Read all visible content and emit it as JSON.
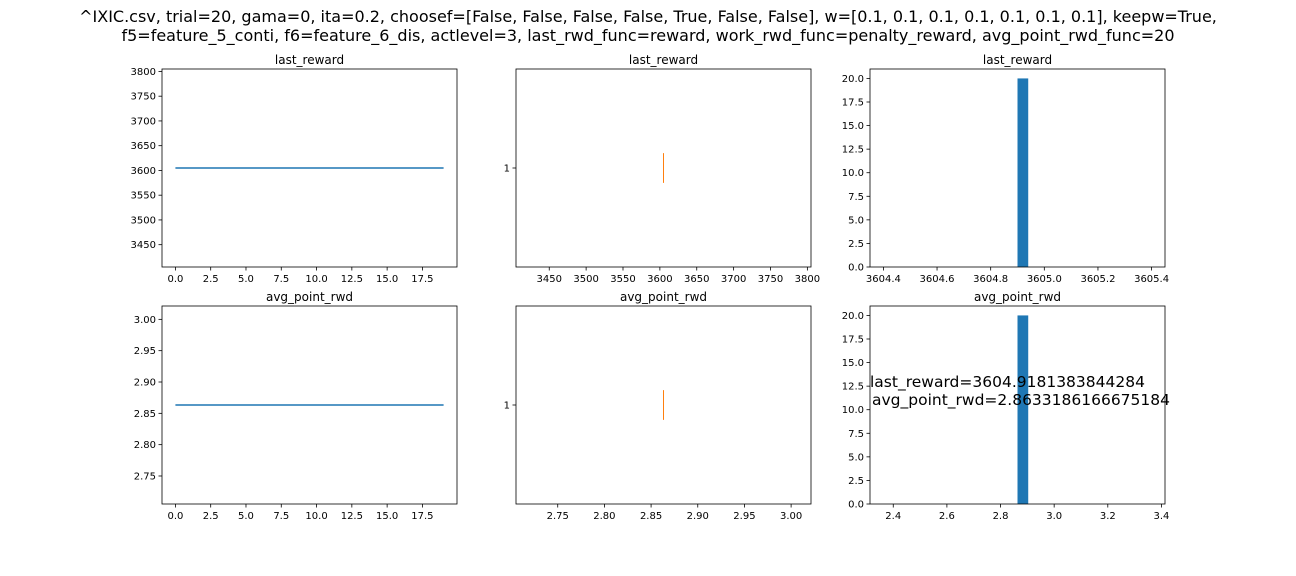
{
  "suptitle": {
    "line1": "^IXIC.csv, trial=20, gama=0, ita=0.2, choosef=[False, False, False, False, True, False, False], w=[0.1, 0.1, 0.1, 0.1, 0.1, 0.1, 0.1], keepw=True,",
    "line2": "f5=feature_5_conti, f6=feature_6_dis, actlevel=3, last_rwd_func=reward, work_rwd_func=penalty_reward, avg_point_rwd_func=20"
  },
  "annotation": {
    "line1": "last_reward=3604.9181383844284",
    "line2": "avg_point_rwd=2.8633186166675184"
  },
  "colors": {
    "line": "#1f77b4",
    "bar": "#1f77b4",
    "event": "#ff7f0e"
  },
  "chart_data": [
    {
      "type": "line",
      "title": "last_reward",
      "x": [
        0,
        1,
        2,
        3,
        4,
        5,
        6,
        7,
        8,
        9,
        10,
        11,
        12,
        13,
        14,
        15,
        16,
        17,
        18,
        19
      ],
      "y": [
        3604.918,
        3604.918,
        3604.918,
        3604.918,
        3604.918,
        3604.918,
        3604.918,
        3604.918,
        3604.918,
        3604.918,
        3604.918,
        3604.918,
        3604.918,
        3604.918,
        3604.918,
        3604.918,
        3604.918,
        3604.918,
        3604.918,
        3604.918
      ],
      "xlim": [
        -0.95,
        19.95
      ],
      "ylim": [
        3404.918,
        3804.918
      ],
      "xticks": [
        0,
        2.5,
        5,
        7.5,
        10,
        12.5,
        15,
        17.5
      ],
      "xtick_labels": [
        "0.0",
        "2.5",
        "5.0",
        "7.5",
        "10.0",
        "12.5",
        "15.0",
        "17.5"
      ],
      "yticks": [
        3450,
        3500,
        3550,
        3600,
        3650,
        3700,
        3750,
        3800
      ],
      "ytick_labels": [
        "3450",
        "3500",
        "3550",
        "3600",
        "3650",
        "3700",
        "3750",
        "3800"
      ]
    },
    {
      "type": "eventplot",
      "title": "last_reward",
      "events": [
        3604.918
      ],
      "lineoffset": 1,
      "linelength": 0.3,
      "xlim": [
        3404.918,
        3804.918
      ],
      "ylim": [
        0,
        2
      ],
      "xticks": [
        3450,
        3500,
        3550,
        3600,
        3650,
        3700,
        3750,
        3800
      ],
      "xtick_labels": [
        "3450",
        "3500",
        "3550",
        "3600",
        "3650",
        "3700",
        "3750",
        "3800"
      ],
      "yticks": [
        1
      ],
      "ytick_labels": [
        "1"
      ]
    },
    {
      "type": "bar",
      "title": "last_reward",
      "bar_x0": 3604.918,
      "bar_x1": 3604.958,
      "value": 20,
      "xlim": [
        3604.368,
        3605.468
      ],
      "ylim": [
        0,
        21
      ],
      "xticks": [
        3604.418,
        3604.618,
        3604.818,
        3605.018,
        3605.218,
        3605.418
      ],
      "xtick_labels": [
        "3604.4",
        "3604.6",
        "3604.8",
        "3605.0",
        "3605.2",
        "3605.4"
      ],
      "yticks": [
        0,
        2.5,
        5,
        7.5,
        10,
        12.5,
        15,
        17.5,
        20
      ],
      "ytick_labels": [
        "0.0",
        "2.5",
        "5.0",
        "7.5",
        "10.0",
        "12.5",
        "15.0",
        "17.5",
        "20.0"
      ]
    },
    {
      "type": "line",
      "title": "avg_point_rwd",
      "x": [
        0,
        1,
        2,
        3,
        4,
        5,
        6,
        7,
        8,
        9,
        10,
        11,
        12,
        13,
        14,
        15,
        16,
        17,
        18,
        19
      ],
      "y": [
        2.8633,
        2.8633,
        2.8633,
        2.8633,
        2.8633,
        2.8633,
        2.8633,
        2.8633,
        2.8633,
        2.8633,
        2.8633,
        2.8633,
        2.8633,
        2.8633,
        2.8633,
        2.8633,
        2.8633,
        2.8633,
        2.8633,
        2.8633
      ],
      "xlim": [
        -0.95,
        19.95
      ],
      "ylim": [
        2.7053,
        3.0213
      ],
      "xticks": [
        0,
        2.5,
        5,
        7.5,
        10,
        12.5,
        15,
        17.5
      ],
      "xtick_labels": [
        "0.0",
        "2.5",
        "5.0",
        "7.5",
        "10.0",
        "12.5",
        "15.0",
        "17.5"
      ],
      "yticks": [
        2.75,
        2.8,
        2.85,
        2.9,
        2.95,
        3.0
      ],
      "ytick_labels": [
        "2.75",
        "2.80",
        "2.85",
        "2.90",
        "2.95",
        "3.00"
      ]
    },
    {
      "type": "eventplot",
      "title": "avg_point_rwd",
      "events": [
        2.8633
      ],
      "lineoffset": 1,
      "linelength": 0.3,
      "xlim": [
        2.7053,
        3.0213
      ],
      "ylim": [
        0,
        2
      ],
      "xticks": [
        2.75,
        2.8,
        2.85,
        2.9,
        2.95,
        3.0
      ],
      "xtick_labels": [
        "2.75",
        "2.80",
        "2.85",
        "2.90",
        "2.95",
        "3.00"
      ],
      "yticks": [
        1
      ],
      "ytick_labels": [
        "1"
      ]
    },
    {
      "type": "bar",
      "title": "avg_point_rwd",
      "bar_x0": 2.8633,
      "bar_x1": 2.9033,
      "value": 20,
      "xlim": [
        2.3133,
        3.4133
      ],
      "ylim": [
        0,
        21
      ],
      "xticks": [
        2.4,
        2.6,
        2.8,
        3.0,
        3.2,
        3.4
      ],
      "xtick_labels": [
        "2.4",
        "2.6",
        "2.8",
        "3.0",
        "3.2",
        "3.4"
      ],
      "yticks": [
        0,
        2.5,
        5,
        7.5,
        10,
        12.5,
        15,
        17.5,
        20
      ],
      "ytick_labels": [
        "0.0",
        "2.5",
        "5.0",
        "7.5",
        "10.0",
        "12.5",
        "15.0",
        "17.5",
        "20.0"
      ]
    }
  ]
}
